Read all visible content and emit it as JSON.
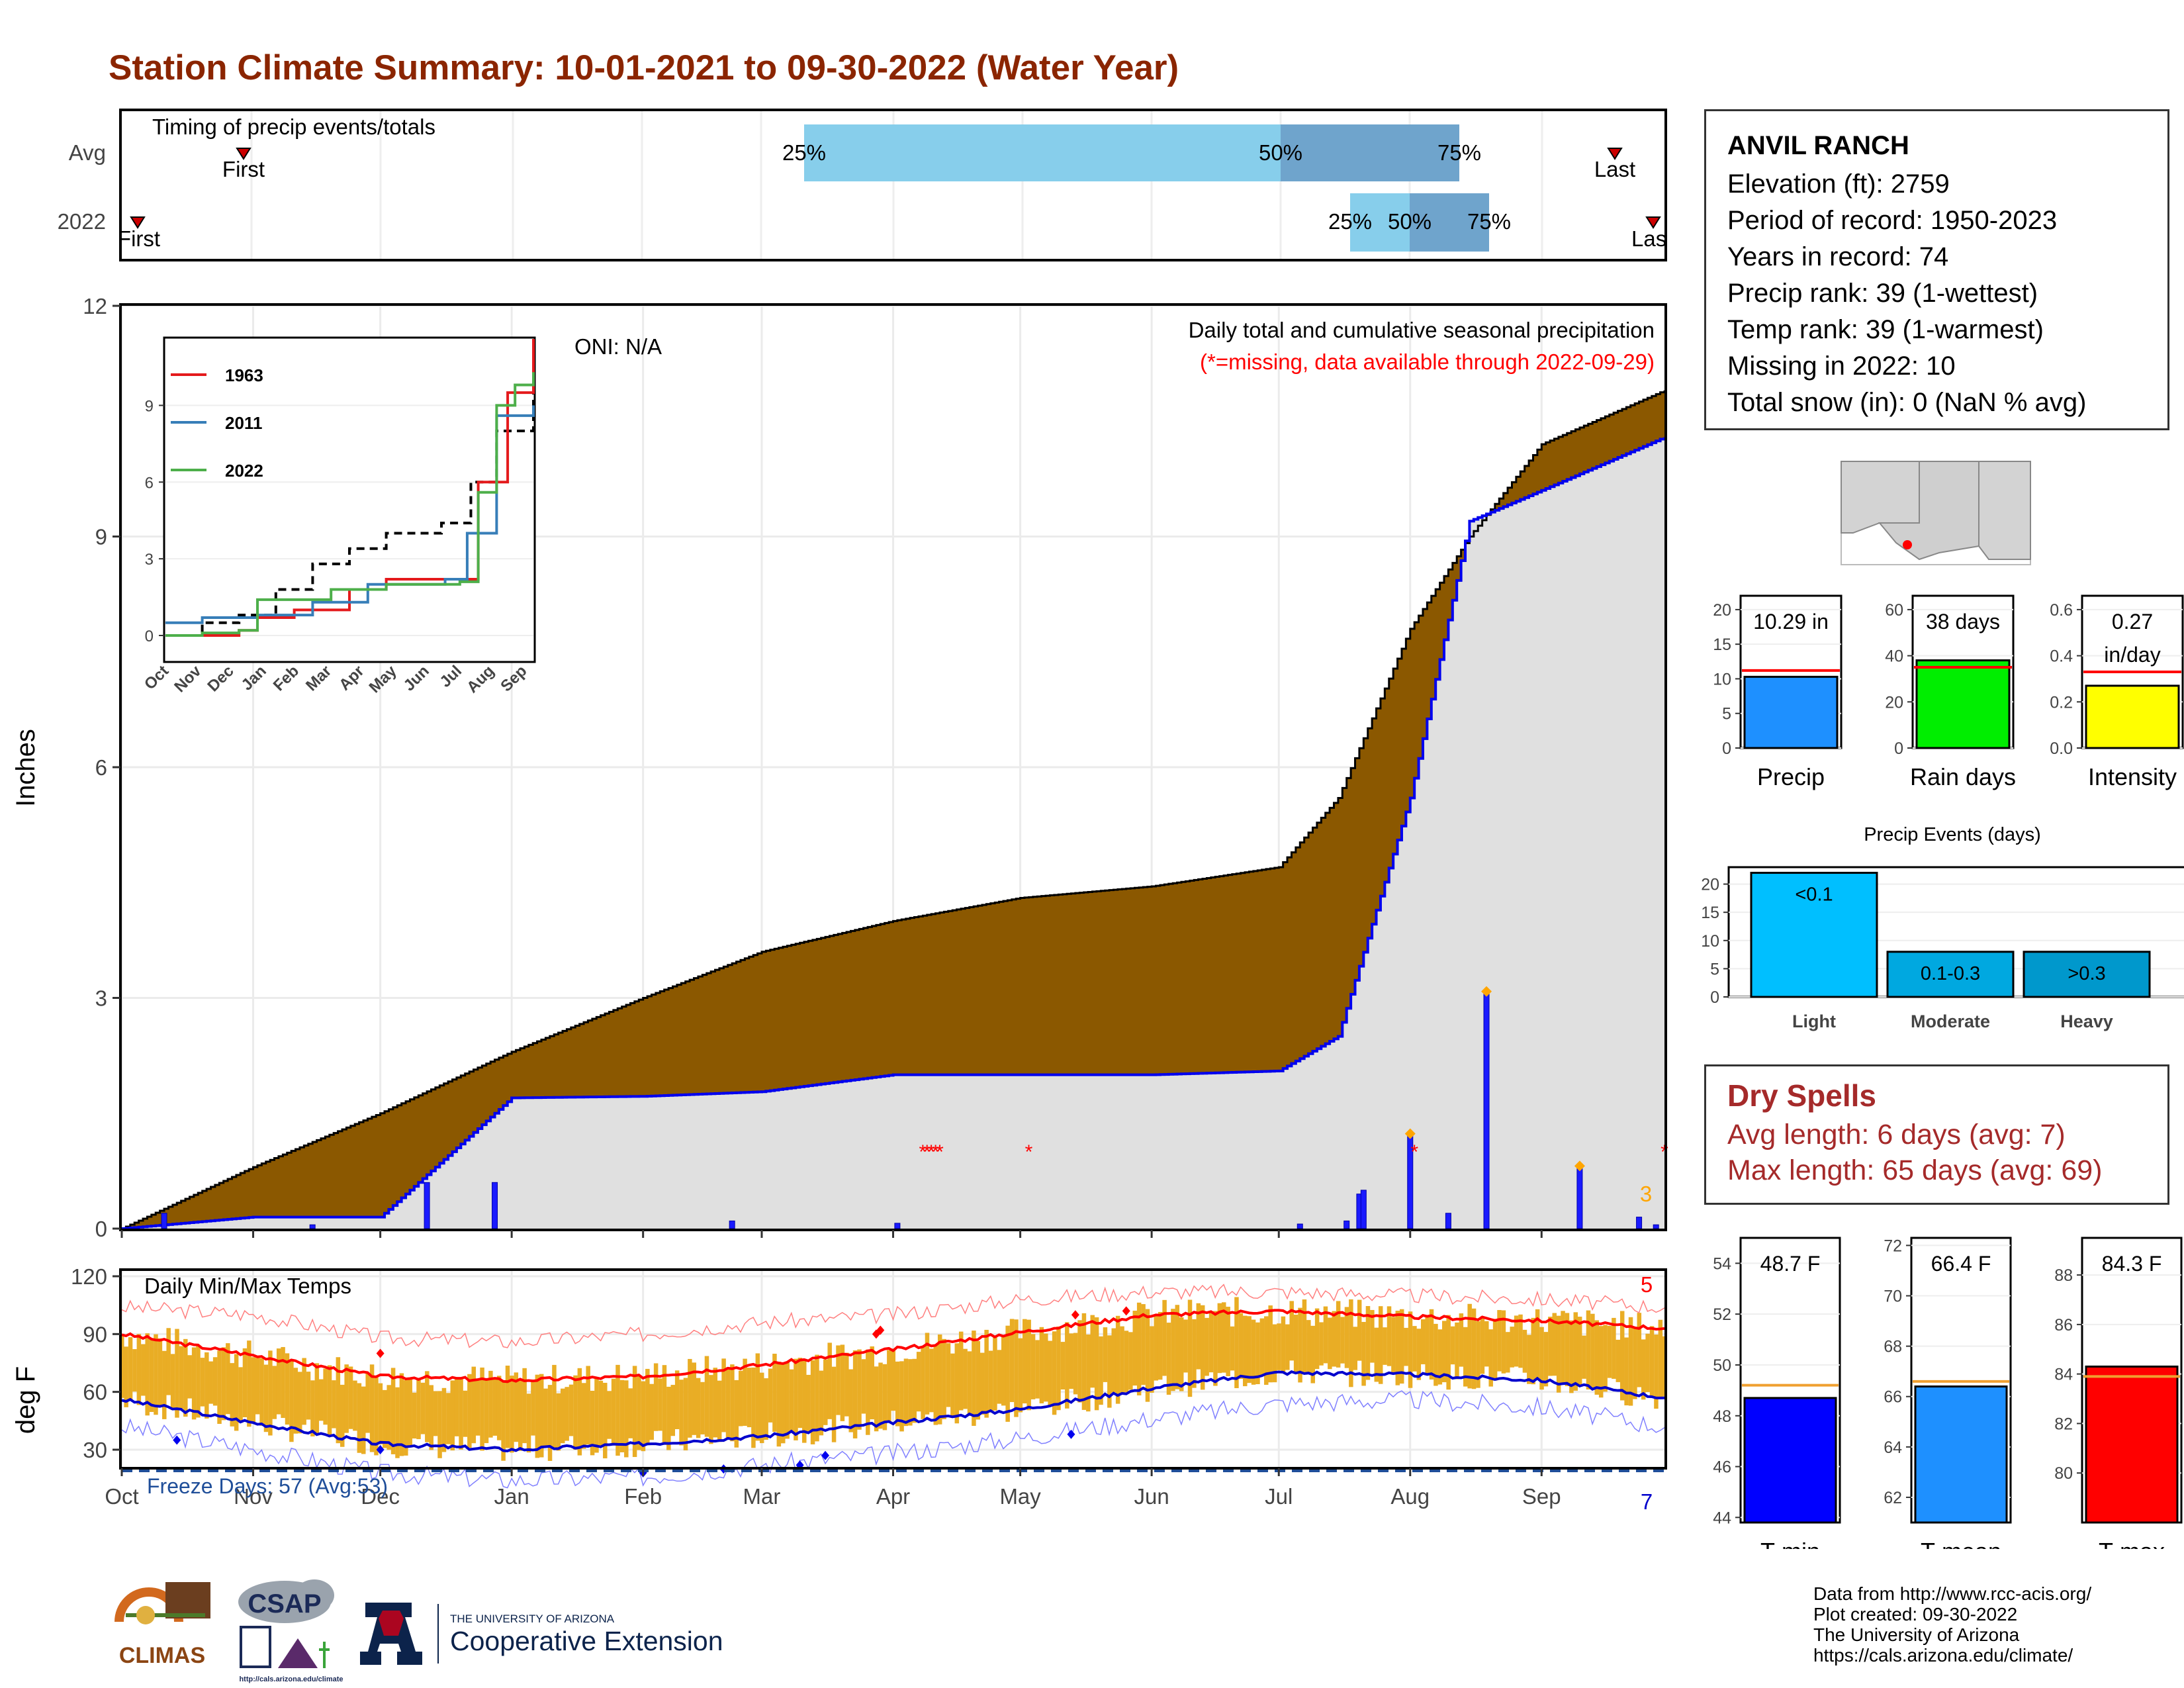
{
  "title": "Station Climate Summary: 10-01-2021 to 09-30-2022 (Water Year)",
  "colors": {
    "title": "#8b2500",
    "cumulative_fill": "#8b5800",
    "avg_fill": "#e0e0e0",
    "precip_bar": "#0000ee",
    "temp_bar": "#e9ad25",
    "tmax_avg": "#ff0000",
    "tmin_avg": "#0000cc",
    "missing": "#ff0000",
    "quartile_light": "#87ceeb",
    "quartile_dark": "#6fa4cc"
  },
  "timing": {
    "label": "Timing of precip events/totals",
    "rows": [
      "Avg",
      "2022"
    ],
    "first_label": "First",
    "last_label": "Last",
    "last_label_truncated": "Las",
    "pct_labels": [
      "25%",
      "50%",
      "75%"
    ]
  },
  "precip_panel": {
    "ylabel": "Inches",
    "oni": "ONI: N/A",
    "note1": "Daily total and cumulative seasonal precipitation",
    "note2": "(*=missing, data available through 2022-09-29)",
    "count_label": "3",
    "yticks": [
      "0",
      "3",
      "6",
      "9",
      "12"
    ]
  },
  "temp_panel": {
    "ylabel": "deg F",
    "title": "Daily Min/Max Temps",
    "freeze": "Freeze Days: 57 (Avg:53)",
    "top_count": "5",
    "bottom_count": "7",
    "yticks": [
      "30",
      "60",
      "90",
      "120"
    ]
  },
  "months": [
    "Oct",
    "Nov",
    "Dec",
    "Jan",
    "Feb",
    "Mar",
    "Apr",
    "May",
    "Jun",
    "Jul",
    "Aug",
    "Sep"
  ],
  "inset": {
    "legend": [
      "1963",
      "2011",
      "2022"
    ],
    "yticks": [
      "0",
      "3",
      "6",
      "9"
    ]
  },
  "station": {
    "name": "ANVIL RANCH",
    "elevation": "Elevation (ft): 2759",
    "period": "Period of record: 1950-2023",
    "years": "Years in record: 74",
    "precip_rank": "Precip rank: 39 (1-wettest)",
    "temp_rank": "Temp rank: 39 (1-warmest)",
    "missing": "Missing in 2022: 10",
    "snow": "Total snow (in): 0 (NaN % avg)"
  },
  "summary_bars": {
    "precip": {
      "label": "Precip",
      "value_label": "10.29 in",
      "yticks": [
        "0",
        "5",
        "10",
        "15",
        "20"
      ]
    },
    "rain_days": {
      "label": "Rain days",
      "value_label": "38 days",
      "yticks": [
        "0",
        "20",
        "40",
        "60"
      ]
    },
    "intensity": {
      "label": "Intensity",
      "value_label1": "0.27",
      "value_label2": "in/day",
      "yticks": [
        "0.0",
        "0.2",
        "0.4",
        "0.6"
      ]
    }
  },
  "events": {
    "title": "Precip Events (days)",
    "categories": [
      "Light",
      "Moderate",
      "Heavy"
    ],
    "bar_labels": [
      "<0.1",
      "0.1-0.3",
      ">0.3"
    ],
    "yticks": [
      "0",
      "5",
      "10",
      "15",
      "20"
    ]
  },
  "dry_spells": {
    "title": "Dry Spells",
    "avg": "Avg length: 6 days (avg: 7)",
    "max": "Max length: 65 days (avg: 69)"
  },
  "temp_bars": {
    "tmin": {
      "label": "T-min",
      "value_label": "48.7 F",
      "yticks": [
        "44",
        "46",
        "48",
        "50",
        "52",
        "54"
      ]
    },
    "tmean": {
      "label": "T-mean",
      "value_label": "66.4 F",
      "yticks": [
        "62",
        "64",
        "66",
        "68",
        "70",
        "72"
      ]
    },
    "tmax": {
      "label": "T-max",
      "value_label": "84.3 F",
      "yticks": [
        "80",
        "82",
        "84",
        "86",
        "88"
      ]
    }
  },
  "footer": {
    "line1": "Data from http://www.rcc-acis.org/",
    "line2": "Plot created: 09-30-2022",
    "line3": "The University of Arizona",
    "line4": "https://cals.arizona.edu/climate/"
  },
  "logos": {
    "climas": "CLIMAS",
    "csap": "CSAP",
    "csap_url": "http://cals.arizona.edu/climate",
    "ua_small": "THE UNIVERSITY OF ARIZONA",
    "ua_large": "Cooperative Extension"
  },
  "chart_data": [
    {
      "type": "area",
      "name": "cumulative",
      "x_dates": [
        "2021-10-01",
        "2021-11-01",
        "2021-12-01",
        "2022-01-01",
        "2022-02-01",
        "2022-03-01",
        "2022-04-01",
        "2022-05-01",
        "2022-06-01",
        "2022-07-01",
        "2022-07-15",
        "2022-08-01",
        "2022-08-15",
        "2022-09-01",
        "2022-09-30"
      ],
      "avg_cumulative": [
        0,
        0.8,
        1.5,
        2.3,
        3.0,
        3.6,
        4.0,
        4.3,
        4.45,
        4.7,
        5.6,
        7.8,
        9.0,
        10.2,
        10.9
      ],
      "year_cumulative": [
        0,
        0.15,
        0.15,
        1.7,
        1.72,
        1.78,
        2.0,
        2.0,
        2.0,
        2.05,
        2.5,
        5.6,
        9.2,
        9.6,
        10.29
      ],
      "ylim": [
        0,
        12
      ]
    },
    {
      "type": "bar",
      "name": "daily precip",
      "events": [
        {
          "date": "2021-10-11",
          "value": 0.2
        },
        {
          "date": "2021-11-15",
          "value": 0.05
        },
        {
          "date": "2021-12-12",
          "value": 0.6
        },
        {
          "date": "2021-12-28",
          "value": 0.6
        },
        {
          "date": "2022-02-22",
          "value": 0.1
        },
        {
          "date": "2022-04-02",
          "value": 0.07
        },
        {
          "date": "2022-07-06",
          "value": 0.06
        },
        {
          "date": "2022-07-17",
          "value": 0.1
        },
        {
          "date": "2022-07-20",
          "value": 0.45
        },
        {
          "date": "2022-07-21",
          "value": 0.5
        },
        {
          "date": "2022-08-01",
          "value": 1.2
        },
        {
          "date": "2022-08-10",
          "value": 0.2
        },
        {
          "date": "2022-08-19",
          "value": 3.05
        },
        {
          "date": "2022-09-10",
          "value": 0.78
        },
        {
          "date": "2022-09-24",
          "value": 0.15
        },
        {
          "date": "2022-09-28",
          "value": 0.05
        }
      ]
    },
    {
      "type": "line",
      "name": "daily temps",
      "x_dates": [
        "2021-10-01",
        "2021-11-01",
        "2021-12-01",
        "2022-01-01",
        "2022-02-01",
        "2022-03-01",
        "2022-04-01",
        "2022-05-01",
        "2022-06-01",
        "2022-07-01",
        "2022-08-01",
        "2022-09-01",
        "2022-09-30"
      ],
      "tmax_avg": [
        90,
        79,
        68,
        66,
        68,
        74,
        82,
        91,
        100,
        102,
        99,
        97,
        93
      ],
      "tmin_avg": [
        56,
        44,
        33,
        30,
        33,
        37,
        44,
        51,
        62,
        70,
        69,
        66,
        57
      ],
      "tmax_record": [
        104,
        100,
        88,
        86,
        90,
        96,
        100,
        108,
        112,
        112,
        110,
        108,
        104
      ],
      "tmin_record": [
        42,
        30,
        18,
        14,
        16,
        22,
        28,
        36,
        46,
        54,
        56,
        52,
        42
      ],
      "ylim": [
        0,
        120
      ]
    },
    {
      "type": "bar",
      "name": "summary",
      "precip_in": 10.29,
      "precip_avg": 11.2,
      "rain_days": 38,
      "rain_days_avg": 35,
      "intensity": 0.27,
      "intensity_avg": 0.33,
      "events_days": [
        22,
        8,
        8
      ],
      "tmin": 48.7,
      "tmin_avg": 49.2,
      "tmean": 66.4,
      "tmean_avg": 66.6,
      "tmax": 84.3,
      "tmax_avg": 83.9
    }
  ]
}
